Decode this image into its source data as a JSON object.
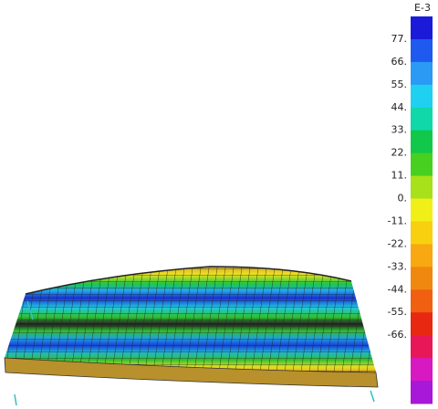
{
  "legend": {
    "exponent": "E-3",
    "labels": [
      "77.",
      "66.",
      "55.",
      "44.",
      "33.",
      "22.",
      "11.",
      "0.",
      "-11.",
      "-22.",
      "-33.",
      "-44.",
      "-55.",
      "-66."
    ],
    "colors": [
      "#1a1ad8",
      "#1e5af0",
      "#2a9af5",
      "#20d0f0",
      "#10d8a8",
      "#12c84a",
      "#48d020",
      "#a8e01a",
      "#f0f018",
      "#f8d010",
      "#f8a810",
      "#f08810",
      "#f06010",
      "#e82810",
      "#e81858",
      "#d818c0",
      "#a818d8"
    ]
  }
}
